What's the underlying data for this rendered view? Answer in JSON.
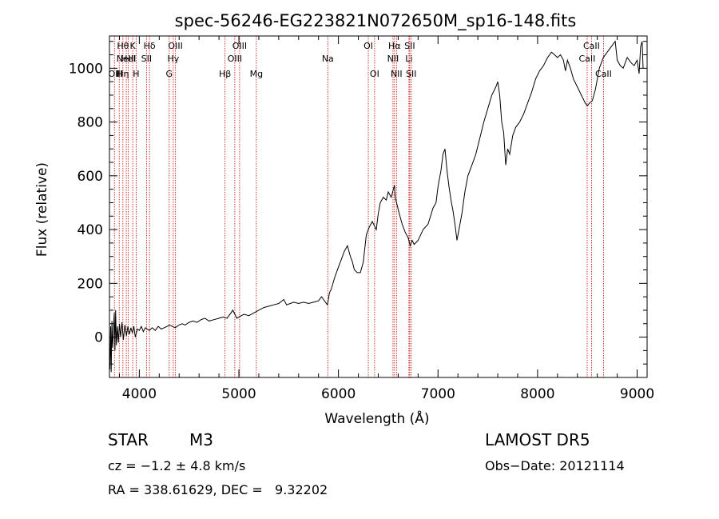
{
  "chart_data": {
    "type": "line",
    "title": "spec-56246-EG223821N072650M_sp16-148.fits",
    "xlabel": "Wavelength (Å)",
    "ylabel": "Flux (relative)",
    "xlim": [
      3700,
      9100
    ],
    "ylim": [
      -150,
      1120
    ],
    "xticks": [
      4000,
      5000,
      6000,
      7000,
      8000,
      9000
    ],
    "yticks": [
      0,
      200,
      400,
      600,
      800,
      1000
    ],
    "grid": false,
    "line_color": "#000000",
    "marker_color": "#cc0000",
    "series": [
      {
        "values": [
          [
            3705,
            -120
          ],
          [
            3712,
            40
          ],
          [
            3718,
            -130
          ],
          [
            3725,
            60
          ],
          [
            3732,
            -40
          ],
          [
            3740,
            20
          ],
          [
            3748,
            90
          ],
          [
            3755,
            -50
          ],
          [
            3762,
            100
          ],
          [
            3770,
            -30
          ],
          [
            3780,
            40
          ],
          [
            3790,
            -20
          ],
          [
            3800,
            50
          ],
          [
            3812,
            0
          ],
          [
            3825,
            55
          ],
          [
            3840,
            -10
          ],
          [
            3855,
            45
          ],
          [
            3870,
            5
          ],
          [
            3885,
            40
          ],
          [
            3900,
            10
          ],
          [
            3915,
            35
          ],
          [
            3930,
            15
          ],
          [
            3945,
            40
          ],
          [
            3960,
            0
          ],
          [
            3980,
            30
          ],
          [
            4000,
            25
          ],
          [
            4020,
            40
          ],
          [
            4040,
            20
          ],
          [
            4060,
            35
          ],
          [
            4080,
            30
          ],
          [
            4100,
            25
          ],
          [
            4130,
            35
          ],
          [
            4160,
            25
          ],
          [
            4190,
            40
          ],
          [
            4220,
            30
          ],
          [
            4250,
            35
          ],
          [
            4280,
            40
          ],
          [
            4300,
            45
          ],
          [
            4330,
            40
          ],
          [
            4360,
            35
          ],
          [
            4400,
            45
          ],
          [
            4430,
            50
          ],
          [
            4460,
            45
          ],
          [
            4500,
            55
          ],
          [
            4540,
            60
          ],
          [
            4580,
            55
          ],
          [
            4620,
            65
          ],
          [
            4660,
            70
          ],
          [
            4700,
            60
          ],
          [
            4750,
            65
          ],
          [
            4800,
            70
          ],
          [
            4840,
            75
          ],
          [
            4880,
            70
          ],
          [
            4900,
            80
          ],
          [
            4940,
            100
          ],
          [
            4960,
            85
          ],
          [
            4980,
            70
          ],
          [
            5000,
            75
          ],
          [
            5050,
            85
          ],
          [
            5100,
            80
          ],
          [
            5150,
            90
          ],
          [
            5200,
            100
          ],
          [
            5250,
            110
          ],
          [
            5300,
            115
          ],
          [
            5350,
            120
          ],
          [
            5400,
            125
          ],
          [
            5450,
            140
          ],
          [
            5480,
            120
          ],
          [
            5550,
            130
          ],
          [
            5600,
            125
          ],
          [
            5650,
            130
          ],
          [
            5700,
            125
          ],
          [
            5750,
            130
          ],
          [
            5800,
            135
          ],
          [
            5830,
            150
          ],
          [
            5850,
            140
          ],
          [
            5870,
            130
          ],
          [
            5890,
            120
          ],
          [
            5910,
            165
          ],
          [
            5930,
            180
          ],
          [
            5960,
            220
          ],
          [
            6000,
            260
          ],
          [
            6030,
            290
          ],
          [
            6060,
            320
          ],
          [
            6090,
            340
          ],
          [
            6120,
            300
          ],
          [
            6140,
            280
          ],
          [
            6160,
            250
          ],
          [
            6190,
            240
          ],
          [
            6220,
            240
          ],
          [
            6250,
            280
          ],
          [
            6280,
            380
          ],
          [
            6310,
            410
          ],
          [
            6340,
            430
          ],
          [
            6380,
            400
          ],
          [
            6400,
            460
          ],
          [
            6420,
            500
          ],
          [
            6450,
            520
          ],
          [
            6480,
            510
          ],
          [
            6500,
            540
          ],
          [
            6530,
            520
          ],
          [
            6563,
            565
          ],
          [
            6570,
            520
          ],
          [
            6590,
            490
          ],
          [
            6610,
            460
          ],
          [
            6640,
            420
          ],
          [
            6670,
            390
          ],
          [
            6700,
            370
          ],
          [
            6720,
            340
          ],
          [
            6740,
            360
          ],
          [
            6760,
            345
          ],
          [
            6800,
            360
          ],
          [
            6850,
            400
          ],
          [
            6900,
            420
          ],
          [
            6950,
            480
          ],
          [
            6980,
            500
          ],
          [
            7000,
            560
          ],
          [
            7030,
            620
          ],
          [
            7050,
            680
          ],
          [
            7070,
            700
          ],
          [
            7090,
            620
          ],
          [
            7110,
            560
          ],
          [
            7130,
            510
          ],
          [
            7150,
            470
          ],
          [
            7170,
            420
          ],
          [
            7190,
            360
          ],
          [
            7210,
            400
          ],
          [
            7240,
            460
          ],
          [
            7270,
            540
          ],
          [
            7300,
            600
          ],
          [
            7340,
            640
          ],
          [
            7380,
            680
          ],
          [
            7420,
            740
          ],
          [
            7460,
            800
          ],
          [
            7500,
            850
          ],
          [
            7540,
            900
          ],
          [
            7580,
            930
          ],
          [
            7600,
            950
          ],
          [
            7620,
            900
          ],
          [
            7640,
            800
          ],
          [
            7660,
            760
          ],
          [
            7680,
            640
          ],
          [
            7700,
            700
          ],
          [
            7720,
            680
          ],
          [
            7750,
            750
          ],
          [
            7780,
            780
          ],
          [
            7820,
            800
          ],
          [
            7860,
            830
          ],
          [
            7900,
            870
          ],
          [
            7940,
            910
          ],
          [
            7980,
            960
          ],
          [
            8020,
            990
          ],
          [
            8060,
            1010
          ],
          [
            8100,
            1040
          ],
          [
            8140,
            1060
          ],
          [
            8170,
            1050
          ],
          [
            8200,
            1040
          ],
          [
            8230,
            1050
          ],
          [
            8260,
            1030
          ],
          [
            8280,
            990
          ],
          [
            8300,
            1030
          ],
          [
            8330,
            1000
          ],
          [
            8360,
            960
          ],
          [
            8400,
            930
          ],
          [
            8440,
            900
          ],
          [
            8480,
            870
          ],
          [
            8500,
            860
          ],
          [
            8520,
            870
          ],
          [
            8550,
            880
          ],
          [
            8580,
            920
          ],
          [
            8620,
            1000
          ],
          [
            8660,
            1040
          ],
          [
            8700,
            1060
          ],
          [
            8740,
            1080
          ],
          [
            8780,
            1100
          ],
          [
            8800,
            1030
          ],
          [
            8830,
            1010
          ],
          [
            8860,
            1000
          ],
          [
            8900,
            1040
          ],
          [
            8940,
            1020
          ],
          [
            8970,
            1010
          ],
          [
            9000,
            1030
          ],
          [
            9020,
            980
          ],
          [
            9035,
            1080
          ],
          [
            9050,
            1100
          ],
          [
            9060,
            1000
          ]
        ]
      }
    ],
    "markers": [
      {
        "x": 3750,
        "tier": 2,
        "label": "OII"
      },
      {
        "x": 3798,
        "tier": 2,
        "label": "H"
      },
      {
        "x": 3835,
        "tier": 0,
        "label": "Hθ"
      },
      {
        "x": 3835,
        "tier": 2,
        "label": "Hη"
      },
      {
        "x": 3869,
        "tier": 1,
        "label": "NeIII"
      },
      {
        "x": 3889,
        "tier": 1,
        "label": "HeI"
      },
      {
        "x": 3934,
        "tier": 0,
        "label": "K"
      },
      {
        "x": 3968,
        "tier": 2,
        "label": "H"
      },
      {
        "x": 4072,
        "tier": 1,
        "label": "SII"
      },
      {
        "x": 4102,
        "tier": 0,
        "label": "Hδ"
      },
      {
        "x": 4300,
        "tier": 2,
        "label": "G"
      },
      {
        "x": 4341,
        "tier": 1,
        "label": "Hγ"
      },
      {
        "x": 4363,
        "tier": 0,
        "label": "OIII"
      },
      {
        "x": 4861,
        "tier": 2,
        "label": "Hβ"
      },
      {
        "x": 4959,
        "tier": 1,
        "label": "OIII"
      },
      {
        "x": 5007,
        "tier": 0,
        "label": "OIII"
      },
      {
        "x": 5175,
        "tier": 2,
        "label": "Mg"
      },
      {
        "x": 5893,
        "tier": 1,
        "label": "Na"
      },
      {
        "x": 6300,
        "tier": 0,
        "label": "OI"
      },
      {
        "x": 6363,
        "tier": 2,
        "label": "OI"
      },
      {
        "x": 6548,
        "tier": 1,
        "label": "NII"
      },
      {
        "x": 6563,
        "tier": 0,
        "label": "Hα"
      },
      {
        "x": 6583,
        "tier": 2,
        "label": "NII"
      },
      {
        "x": 6708,
        "tier": 1,
        "label": "Li"
      },
      {
        "x": 6716,
        "tier": 0,
        "label": "SII"
      },
      {
        "x": 6731,
        "tier": 2,
        "label": "SII"
      },
      {
        "x": 8498,
        "tier": 1,
        "label": "CaII"
      },
      {
        "x": 8542,
        "tier": 0,
        "label": "CaII"
      },
      {
        "x": 8662,
        "tier": 2,
        "label": "CaII"
      }
    ]
  },
  "info": {
    "object_type": "STAR",
    "subclass": "M3",
    "survey": "LAMOST DR5",
    "cz": "cz = −1.2 ± 4.8 km/s",
    "obs_date": "Obs−Date: 20121114",
    "coords": "RA = 338.61629, DEC =   9.32202"
  }
}
